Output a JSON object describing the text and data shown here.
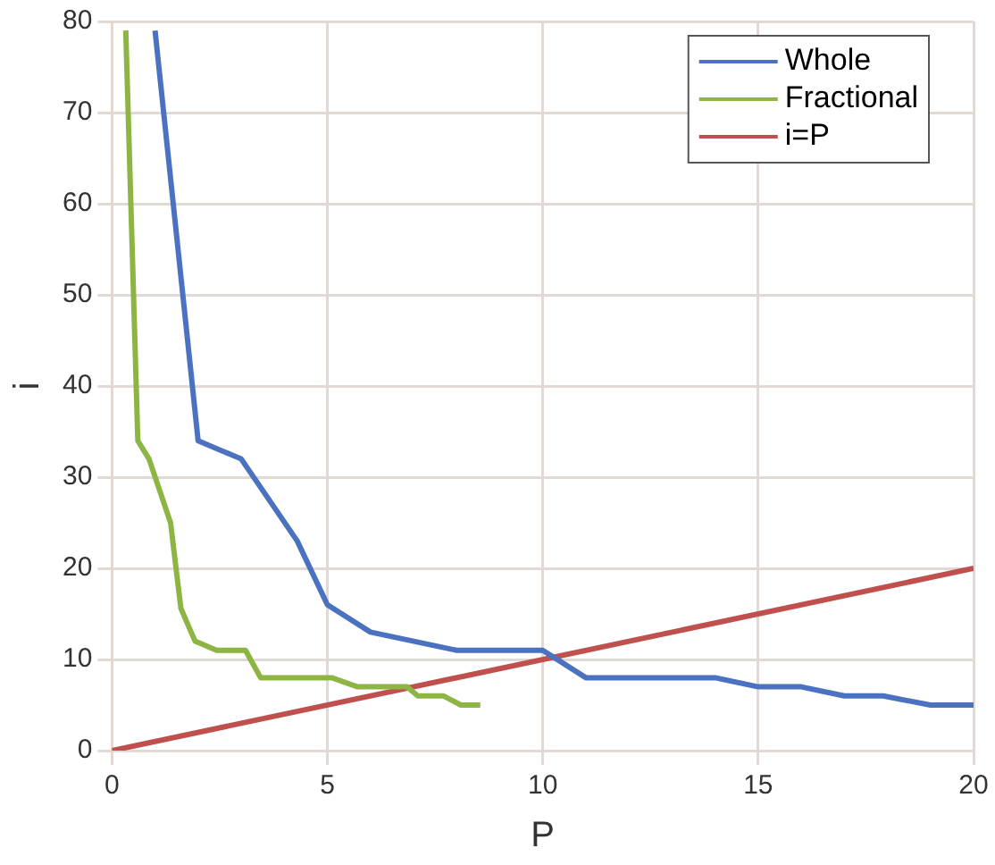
{
  "chart_data": {
    "type": "line",
    "xlabel": "P",
    "ylabel": "i",
    "xlim": [
      0,
      20
    ],
    "xticks": [
      0,
      5,
      10,
      15,
      20
    ],
    "ylim": [
      0,
      80
    ],
    "yticks": [
      0,
      10,
      20,
      30,
      40,
      50,
      60,
      70,
      80
    ],
    "grid": true,
    "legend": "top right",
    "marker": "none",
    "line_style": "solid",
    "series": [
      {
        "name": "Whole",
        "color": "#4a72c0",
        "x": [
          1.0,
          2.0,
          3.0,
          4.3,
          5.0,
          6.0,
          8.0,
          10.0,
          11.0,
          14.0,
          15.0,
          16.0,
          17.0,
          17.9,
          19.0,
          20.0
        ],
        "values": [
          79,
          34,
          32,
          23,
          16,
          13,
          11,
          11,
          8,
          8,
          7,
          7,
          6,
          6,
          5,
          5
        ]
      },
      {
        "name": "Fractional",
        "color": "#8db543",
        "x": [
          0.32,
          0.6,
          0.86,
          1.36,
          1.6,
          1.93,
          2.43,
          3.1,
          3.45,
          5.1,
          5.7,
          6.85,
          7.1,
          7.7,
          8.1,
          8.55
        ],
        "values": [
          79,
          34,
          32,
          25,
          15.6,
          12,
          11,
          11,
          8,
          8,
          7,
          7,
          6,
          6,
          5,
          5
        ]
      },
      {
        "name": "i=P",
        "color": "#c0504d",
        "x": [
          0,
          20
        ],
        "values": [
          0,
          20
        ]
      }
    ]
  }
}
